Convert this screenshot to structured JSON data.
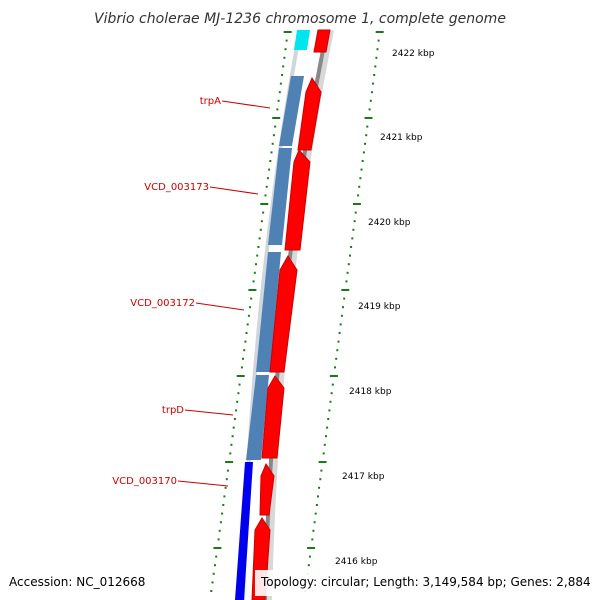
{
  "title": "Vibrio cholerae MJ-1236 chromosome 1, complete genome",
  "footer": {
    "accession": "Accession: NC_012668",
    "summary": "Topology: circular; Length: 3,149,584 bp; Genes: 2,884"
  },
  "colors": {
    "title": "#333333",
    "gene_label": "#cc0000",
    "label_line": "#cc0000",
    "cds": "#ff0000",
    "gene_steelblue": "#4f81b5",
    "gene_blue": "#0000ee",
    "gene_cyan": "#00e5ee",
    "backbone": "#888888",
    "tick": "#1a7a1a"
  },
  "gene_labels": [
    {
      "label": "trpA"
    },
    {
      "label": "VCD_003173"
    },
    {
      "label": "VCD_003172"
    },
    {
      "label": "trpD"
    },
    {
      "label": "VCD_003170"
    }
  ],
  "scale_ticks": [
    {
      "label": "2422 kbp"
    },
    {
      "label": "2421 kbp"
    },
    {
      "label": "2420 kbp"
    },
    {
      "label": "2419 kbp"
    },
    {
      "label": "2418 kbp"
    },
    {
      "label": "2417 kbp"
    },
    {
      "label": "2416 kbp"
    }
  ]
}
